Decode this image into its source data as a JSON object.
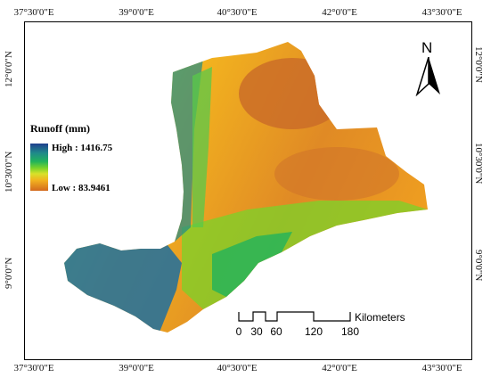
{
  "map": {
    "legend": {
      "title": "Runoff (mm)",
      "high_label": "High : 1416.75",
      "low_label": "Low : 83.9461",
      "colors": [
        "#1f3f8f",
        "#1f8a8a",
        "#21b35b",
        "#7ad32a",
        "#d8e12a",
        "#f2b21f",
        "#d36a1e"
      ]
    },
    "north_arrow": {
      "letter": "N",
      "icon": "north-arrow-icon"
    },
    "graticule": {
      "longitudes": [
        "37°30'0\"E",
        "39°0'0\"E",
        "40°30'0\"E",
        "42°0'0\"E",
        "43°30'0\"E"
      ],
      "latitudes": [
        "12°0'0\"N",
        "10°30'0\"N",
        "9°0'0\"N"
      ]
    },
    "scale_bar": {
      "ticks": [
        "0",
        "30",
        "60",
        "120",
        "180"
      ],
      "unit": "Kilometers"
    }
  }
}
